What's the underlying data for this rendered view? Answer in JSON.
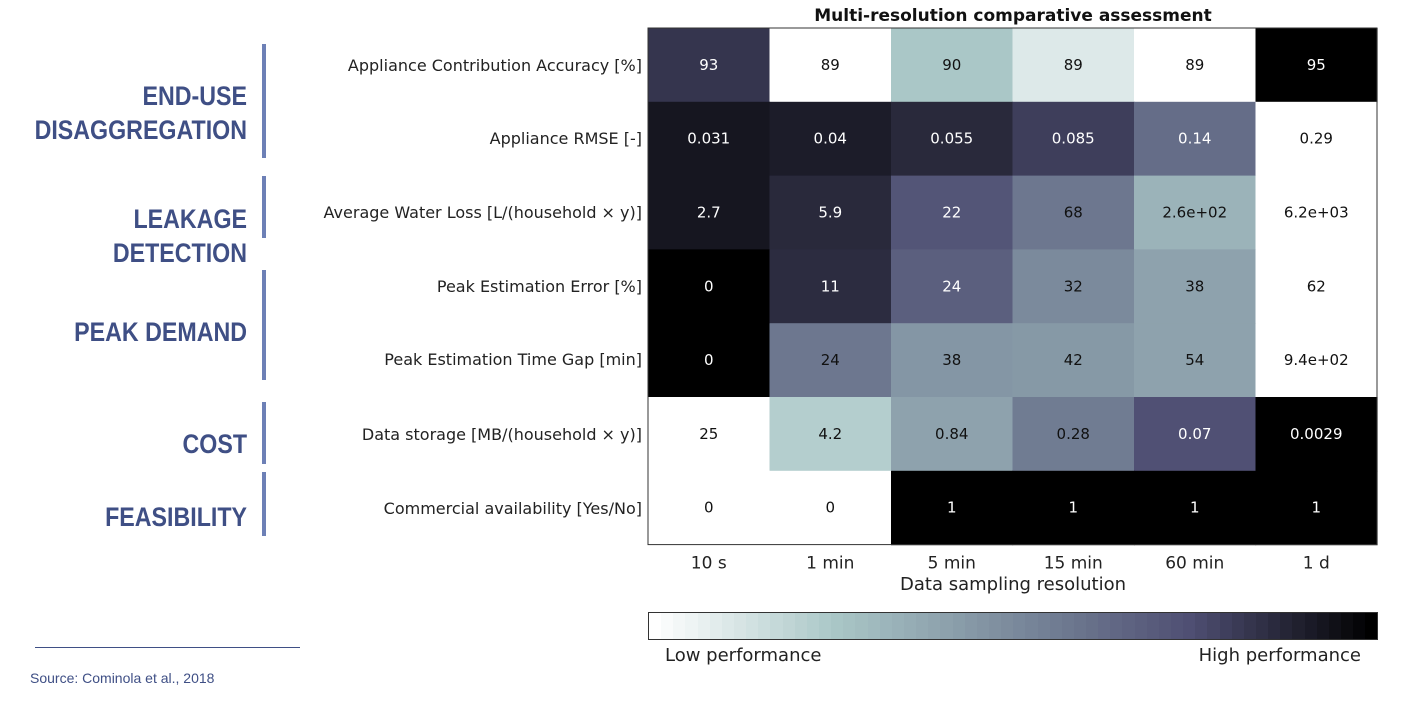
{
  "categories": [
    {
      "line1": "END-USE",
      "line2": "DISAGGREGATION"
    },
    {
      "line1": "LEAKAGE DETECTION",
      "line2": ""
    },
    {
      "line1": "PEAK DEMAND",
      "line2": ""
    },
    {
      "line1": "COST",
      "line2": ""
    },
    {
      "line1": "FEASIBILITY",
      "line2": ""
    }
  ],
  "chart_data": {
    "type": "heatmap",
    "title": "Multi-resolution comparative assessment",
    "xlabel": "Data sampling resolution",
    "categories": [
      "10 s",
      "1 min",
      "5 min",
      "15 min",
      "60 min",
      "1 d"
    ],
    "rows": [
      "Appliance Contribution Accuracy [%]",
      "Appliance RMSE [-]",
      "Average Water Loss [L/(household × y)]",
      "Peak Estimation Error [%]",
      "Peak Estimation Time Gap [min]",
      "Data storage [MB/(household × y)]",
      "Commercial availability [Yes/No]"
    ],
    "cell_labels": [
      [
        "93",
        "89",
        "90",
        "89",
        "89",
        "95"
      ],
      [
        "0.031",
        "0.04",
        "0.055",
        "0.085",
        "0.14",
        "0.29"
      ],
      [
        "2.7",
        "5.9",
        "22",
        "68",
        "2.6e+02",
        "6.2e+03"
      ],
      [
        "0",
        "11",
        "24",
        "32",
        "38",
        "62"
      ],
      [
        "0",
        "24",
        "38",
        "42",
        "54",
        "9.4e+02"
      ],
      [
        "25",
        "4.2",
        "0.84",
        "0.28",
        "0.07",
        "0.0029"
      ],
      [
        "0",
        "0",
        "1",
        "1",
        "1",
        "1"
      ]
    ],
    "performance": [
      [
        0.83,
        0.0,
        0.25,
        0.1,
        0.0,
        1.0
      ],
      [
        0.93,
        0.91,
        0.87,
        0.8,
        0.62,
        0.0
      ],
      [
        0.93,
        0.87,
        0.72,
        0.58,
        0.33,
        0.0
      ],
      [
        1.0,
        0.86,
        0.68,
        0.5,
        0.4,
        0.0
      ],
      [
        1.0,
        0.58,
        0.45,
        0.44,
        0.4,
        0.0
      ],
      [
        0.0,
        0.22,
        0.4,
        0.56,
        0.74,
        1.0
      ],
      [
        0.0,
        0.0,
        1.0,
        1.0,
        1.0,
        1.0
      ]
    ],
    "legend": {
      "low": "Low performance",
      "high": "High performance"
    },
    "colormap": [
      "#ffffff",
      "#aac7c7",
      "#7b8a9c",
      "#4e4e72",
      "#000000"
    ]
  },
  "source": "Source: Cominola et al., 2018"
}
